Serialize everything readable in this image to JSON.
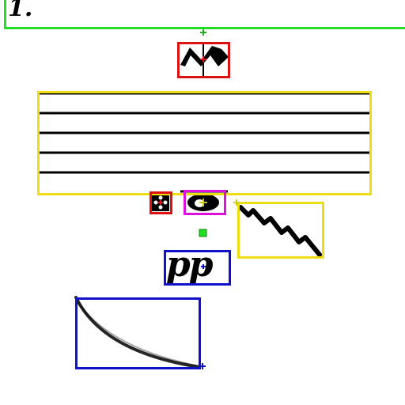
{
  "score": {
    "measure_number": "1.",
    "dynamic_marking": "pp"
  },
  "detections": [
    {
      "label": "system",
      "color": "#22dd22"
    },
    {
      "label": "mordent",
      "color": "#dd1111"
    },
    {
      "label": "staff",
      "color": "#eedd11"
    },
    {
      "label": "notehead",
      "color": "#dd1111"
    },
    {
      "label": "whole-note",
      "color": "#dd11dd"
    },
    {
      "label": "trill-line",
      "color": "#eedd11"
    },
    {
      "label": "dynamic",
      "color": "#1111cc"
    },
    {
      "label": "slur",
      "color": "#1111cc"
    }
  ]
}
